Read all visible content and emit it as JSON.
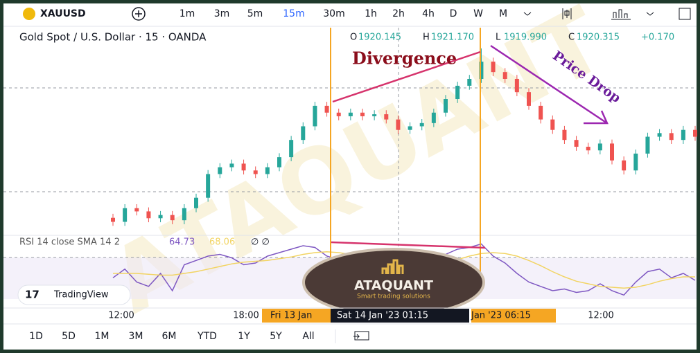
{
  "toolbar": {
    "symbol": "XAUUSD",
    "intervals": [
      {
        "label": "1m",
        "active": false
      },
      {
        "label": "3m",
        "active": false
      },
      {
        "label": "5m",
        "active": false
      },
      {
        "label": "15m",
        "active": true
      },
      {
        "label": "30m",
        "active": false
      },
      {
        "label": "1h",
        "active": false
      },
      {
        "label": "2h",
        "active": false
      },
      {
        "label": "4h",
        "active": false
      },
      {
        "label": "D",
        "active": false
      },
      {
        "label": "W",
        "active": false
      },
      {
        "label": "M",
        "active": false
      }
    ]
  },
  "legend": {
    "title": "Gold Spot / U.S. Dollar · 15 · OANDA",
    "ohlc": [
      {
        "label": "O",
        "value": "1920.145"
      },
      {
        "label": "H",
        "value": "1921.170"
      },
      {
        "label": "L",
        "value": "1919.990"
      },
      {
        "label": "C",
        "value": "1920.315"
      }
    ],
    "change": "+0.170"
  },
  "annotations": {
    "divergence": "Divergence",
    "price_drop": "Price Drop"
  },
  "watermark": "ATAQUANT",
  "logo": {
    "name": "ATAQUANT",
    "tagline": "Smart trading solutions"
  },
  "badge": "TradingView",
  "chart": {
    "type": "candlestick",
    "ylim": [
      1916.6,
      1921.6
    ],
    "up_color": "#26a69a",
    "down_color": "#ef5350",
    "open": [
      1916.95,
      1916.85,
      1917.19,
      1917.11,
      1916.94,
      1917.02,
      1916.89,
      1917.19,
      1917.45,
      1918.04,
      1918.21,
      1918.3,
      1918.13,
      1918.04,
      1918.21,
      1918.46,
      1918.89,
      1919.23,
      1919.74,
      1919.57,
      1919.48,
      1919.57,
      1919.48,
      1919.53,
      1919.4,
      1919.14,
      1919.23,
      1919.31,
      1919.57,
      1919.91,
      1920.24,
      1920.41,
      1920.84,
      1920.58,
      1920.41,
      1920.08,
      1919.74,
      1919.4,
      1919.14,
      1918.89,
      1918.72,
      1918.63,
      1918.8,
      1918.38,
      1918.13,
      1918.55,
      1918.97,
      1919.06,
      1918.89,
      1919.14
    ],
    "high": [
      1917.05,
      1917.29,
      1917.29,
      1917.21,
      1917.12,
      1917.12,
      1917.29,
      1917.55,
      1918.14,
      1918.31,
      1918.4,
      1918.4,
      1918.23,
      1918.31,
      1918.56,
      1918.99,
      1919.33,
      1919.84,
      1919.84,
      1919.67,
      1919.67,
      1919.67,
      1919.63,
      1919.63,
      1919.5,
      1919.33,
      1919.41,
      1919.67,
      1920.01,
      1920.34,
      1920.51,
      1921.17,
      1920.94,
      1920.68,
      1920.51,
      1920.18,
      1919.84,
      1919.5,
      1919.24,
      1918.99,
      1918.82,
      1918.9,
      1918.9,
      1918.48,
      1918.65,
      1919.07,
      1919.16,
      1919.16,
      1919.24,
      1919.24
    ],
    "low": [
      1916.75,
      1916.75,
      1917.01,
      1916.84,
      1916.84,
      1916.79,
      1916.79,
      1917.09,
      1917.35,
      1917.94,
      1918.11,
      1918.03,
      1917.94,
      1917.94,
      1918.11,
      1918.36,
      1918.79,
      1919.13,
      1919.47,
      1919.38,
      1919.38,
      1919.38,
      1919.38,
      1919.3,
      1919.04,
      1919.04,
      1919.13,
      1919.21,
      1919.47,
      1919.81,
      1920.14,
      1920.31,
      1920.48,
      1920.31,
      1919.98,
      1919.64,
      1919.3,
      1919.04,
      1918.79,
      1918.62,
      1918.53,
      1918.53,
      1918.28,
      1918.03,
      1918.03,
      1918.45,
      1918.87,
      1918.79,
      1918.79,
      1918.87
    ],
    "close": [
      1916.85,
      1917.19,
      1917.11,
      1916.94,
      1917.02,
      1916.89,
      1917.19,
      1917.45,
      1918.04,
      1918.21,
      1918.3,
      1918.13,
      1918.04,
      1918.21,
      1918.46,
      1918.89,
      1919.23,
      1919.74,
      1919.57,
      1919.48,
      1919.57,
      1919.48,
      1919.53,
      1919.4,
      1919.14,
      1919.23,
      1919.31,
      1919.57,
      1919.91,
      1920.24,
      1920.41,
      1920.84,
      1920.58,
      1920.41,
      1920.08,
      1919.74,
      1919.4,
      1919.14,
      1918.89,
      1918.72,
      1918.63,
      1918.8,
      1918.38,
      1918.13,
      1918.55,
      1918.97,
      1919.06,
      1918.89,
      1919.14,
      1918.97
    ]
  },
  "rsi": {
    "label": "RSI 14 close SMA 14 2",
    "ylim": [
      10,
      90
    ],
    "series": [
      {
        "value_text": "64.73",
        "color": "#7e57c2",
        "values": [
          45,
          55,
          40,
          35,
          50,
          30,
          60,
          65,
          70,
          72,
          68,
          60,
          62,
          70,
          74,
          78,
          82,
          80,
          70,
          66,
          65,
          60,
          62,
          58,
          50,
          55,
          58,
          65,
          72,
          78,
          80,
          84,
          70,
          62,
          50,
          40,
          35,
          30,
          32,
          28,
          30,
          38,
          30,
          25,
          40,
          52,
          55,
          45,
          50,
          42
        ]
      },
      {
        "value_text": "68.06",
        "color": "#f2d462",
        "values": [
          50,
          50,
          50,
          49,
          48,
          48,
          50,
          52,
          55,
          58,
          61,
          63,
          64,
          65,
          67,
          69,
          72,
          74,
          75,
          74,
          72,
          70,
          67,
          64,
          61,
          59,
          58,
          59,
          62,
          66,
          70,
          73,
          74,
          73,
          70,
          65,
          59,
          52,
          46,
          41,
          38,
          35,
          34,
          33,
          34,
          37,
          41,
          44,
          46,
          46
        ]
      }
    ],
    "extra": "∅ ∅"
  },
  "time_axis": {
    "left": "12:00",
    "mid": "18:00",
    "left_date": "Fri 13 Jan",
    "cursor": "Sat 14 Jan '23   01:15",
    "right_date": "Jan '23   06:15",
    "right": "12:00"
  },
  "ranges": [
    "1D",
    "5D",
    "1M",
    "3M",
    "6M",
    "YTD",
    "1Y",
    "5Y",
    "All"
  ]
}
